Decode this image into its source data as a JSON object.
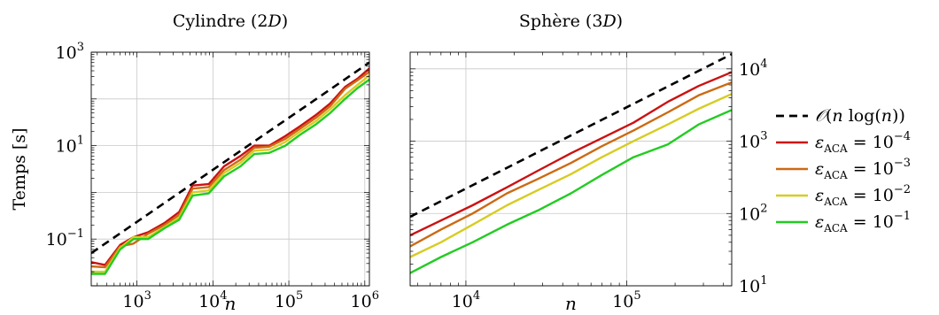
{
  "chart_data": [
    {
      "type": "line",
      "title": "Cylindre (2D)",
      "xlabel": "n",
      "ylabel": "Temps [s]",
      "xscale": "log",
      "yscale": "log",
      "xlim": [
        250,
        1150000
      ],
      "ylim": [
        0.01,
        1000
      ],
      "xticks": [
        1000,
        10000,
        100000,
        1000000
      ],
      "xtick_labels": [
        "10^3",
        "10^4",
        "10^5",
        "10^6"
      ],
      "yticks": [
        0.1,
        10,
        1000
      ],
      "ytick_labels": [
        "10^-1",
        "10^1",
        "10^3"
      ],
      "ylabel_side": "left",
      "grid": true,
      "series": [
        {
          "name": "O(n log(n))",
          "color": "#000000",
          "dash": true,
          "x": [
            250,
            1150000
          ],
          "y": [
            0.05,
            600
          ]
        },
        {
          "name": "eps_ACA = 10^-4",
          "color": "#cc1111",
          "x": [
            250,
            380,
            600,
            900,
            1400,
            2300,
            3600,
            5400,
            8800,
            14000,
            23000,
            35000,
            55000,
            90000,
            140000,
            230000,
            350000,
            550000,
            800000,
            1150000
          ],
          "y": [
            0.032,
            0.028,
            0.075,
            0.11,
            0.14,
            0.22,
            0.38,
            1.4,
            1.5,
            3.6,
            6.0,
            10.0,
            10.0,
            16.0,
            26.0,
            46.0,
            80.0,
            180.0,
            270.0,
            450.0
          ]
        },
        {
          "name": "eps_ACA = 10^-3",
          "color": "#cc6a14",
          "x": [
            250,
            380,
            600,
            900,
            1400,
            2300,
            3600,
            5400,
            8800,
            14000,
            23000,
            35000,
            55000,
            90000,
            140000,
            230000,
            350000,
            550000,
            800000,
            1150000
          ],
          "y": [
            0.026,
            0.025,
            0.07,
            0.08,
            0.13,
            0.2,
            0.33,
            1.2,
            1.3,
            3.0,
            5.0,
            9.0,
            9.5,
            14.0,
            23.0,
            40.0,
            70.0,
            165.0,
            250.0,
            380.0
          ]
        },
        {
          "name": "eps_ACA = 10^-2",
          "color": "#d7cc22",
          "x": [
            250,
            380,
            600,
            900,
            1400,
            2300,
            3600,
            5400,
            8800,
            14000,
            23000,
            35000,
            55000,
            90000,
            140000,
            230000,
            350000,
            550000,
            800000,
            1150000
          ],
          "y": [
            0.02,
            0.02,
            0.065,
            0.11,
            0.11,
            0.18,
            0.29,
            1.0,
            1.1,
            2.6,
            4.3,
            7.8,
            8.2,
            12.0,
            20.0,
            34.0,
            60.0,
            120.0,
            200.0,
            320.0
          ]
        },
        {
          "name": "eps_ACA = 10^-1",
          "color": "#22cc22",
          "x": [
            250,
            380,
            600,
            900,
            1400,
            2300,
            3600,
            5400,
            8800,
            14000,
            23000,
            35000,
            55000,
            90000,
            140000,
            230000,
            350000,
            550000,
            800000,
            1150000
          ],
          "y": [
            0.018,
            0.018,
            0.06,
            0.1,
            0.1,
            0.17,
            0.26,
            0.85,
            0.95,
            2.2,
            3.6,
            6.6,
            7.0,
            10.0,
            17.0,
            29.0,
            50.0,
            100.0,
            170.0,
            260.0
          ]
        }
      ]
    },
    {
      "type": "line",
      "title": "Sphère (3D)",
      "xlabel": "n",
      "ylabel": "",
      "xscale": "log",
      "yscale": "log",
      "xlim": [
        4500,
        450000
      ],
      "ylim": [
        10,
        17000
      ],
      "xticks": [
        10000,
        100000
      ],
      "xtick_labels": [
        "10^4",
        "10^5"
      ],
      "yticks": [
        10,
        100,
        1000,
        10000
      ],
      "ytick_labels": [
        "10^1",
        "10^2",
        "10^3",
        "10^4"
      ],
      "ylabel_side": "right",
      "grid": true,
      "series": [
        {
          "name": "O(n log(n))",
          "color": "#000000",
          "dash": true,
          "x": [
            4500,
            450000
          ],
          "y": [
            90,
            16000
          ]
        },
        {
          "name": "eps_ACA = 10^-4",
          "color": "#cc1111",
          "x": [
            4500,
            7000,
            11000,
            18000,
            28000,
            45000,
            70000,
            110000,
            180000,
            280000,
            450000
          ],
          "y": [
            50,
            80,
            130,
            230,
            390,
            680,
            1100,
            1800,
            3500,
            5800,
            9000
          ]
        },
        {
          "name": "eps_ACA = 10^-3",
          "color": "#cc6a14",
          "x": [
            4500,
            7000,
            11000,
            18000,
            28000,
            45000,
            70000,
            110000,
            180000,
            280000,
            450000
          ],
          "y": [
            35,
            60,
            100,
            190,
            300,
            500,
            850,
            1400,
            2500,
            4300,
            6500
          ]
        },
        {
          "name": "eps_ACA = 10^-2",
          "color": "#d7cc22",
          "x": [
            4500,
            7000,
            11000,
            18000,
            28000,
            45000,
            70000,
            110000,
            180000,
            280000,
            450000
          ],
          "y": [
            25,
            40,
            70,
            130,
            210,
            350,
            600,
            1000,
            1700,
            2800,
            4500
          ]
        },
        {
          "name": "eps_ACA = 10^-1",
          "color": "#22cc22",
          "x": [
            4500,
            7000,
            11000,
            18000,
            28000,
            45000,
            70000,
            110000,
            180000,
            280000,
            450000
          ],
          "y": [
            15,
            25,
            40,
            70,
            110,
            190,
            340,
            600,
            900,
            1700,
            2700
          ]
        }
      ]
    }
  ],
  "legend": {
    "placement": "right",
    "entries": [
      {
        "label": "O(n log(n))",
        "color": "#000000",
        "dash": true
      },
      {
        "label": "eps_ACA = 10^-4",
        "color": "#cc1111",
        "dash": false
      },
      {
        "label": "eps_ACA = 10^-3",
        "color": "#cc6a14",
        "dash": false
      },
      {
        "label": "eps_ACA = 10^-2",
        "color": "#d7cc22",
        "dash": false
      },
      {
        "label": "eps_ACA = 10^-1",
        "color": "#22cc22",
        "dash": false
      }
    ]
  }
}
